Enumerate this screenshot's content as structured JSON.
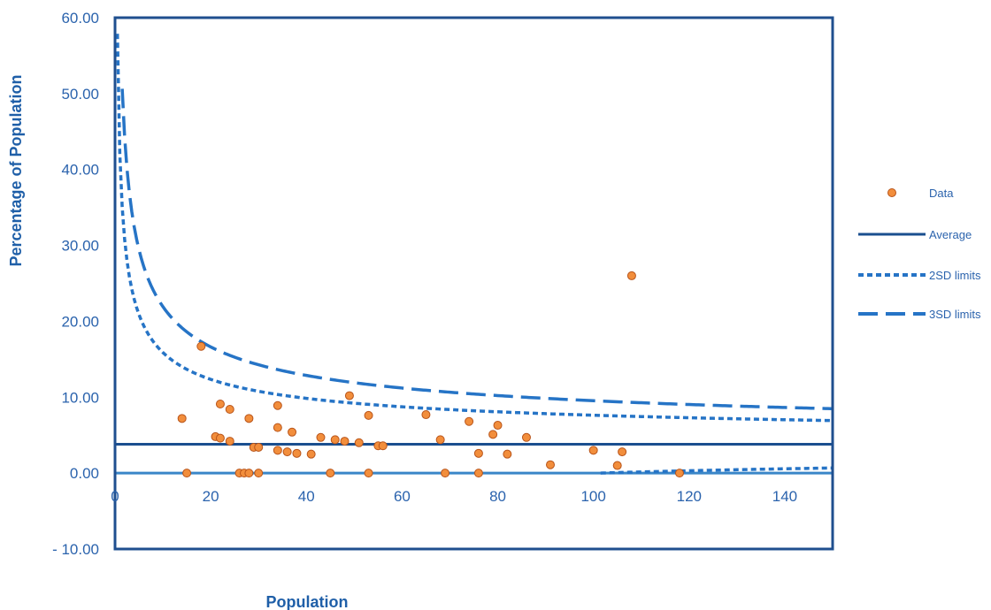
{
  "chart_data": {
    "type": "scatter",
    "title": "",
    "xlabel": "Population",
    "ylabel": "Percentage of Population",
    "xlim": [
      0,
      150
    ],
    "ylim": [
      -10,
      60
    ],
    "x_ticks": [
      0,
      20,
      40,
      60,
      80,
      100,
      120,
      140
    ],
    "y_ticks": [
      -10,
      0,
      10,
      20,
      30,
      40,
      50,
      60
    ],
    "x_tick_labels": [
      "0",
      "20",
      "40",
      "60",
      "80",
      "100",
      "120",
      "140"
    ],
    "y_tick_labels": [
      "- 10.00",
      "0.00",
      "10.00",
      "20.00",
      "30.00",
      "40.00",
      "50.00",
      "60.00"
    ],
    "grid": false,
    "legend_position": "right",
    "legend": [
      "Data",
      "Average",
      "2SD limits",
      "3SD limits"
    ],
    "average": 3.8,
    "colors": {
      "data_fill": "#f28e3c",
      "data_stroke": "#b8541a",
      "average": "#1a4f8f",
      "limits": "#2674c6",
      "frame": "#1f4f8f",
      "zero_line": "#3a86c8",
      "text": "#2b63ad"
    },
    "series": [
      {
        "name": "Data",
        "points": [
          [
            14,
            7.2
          ],
          [
            15,
            0
          ],
          [
            18,
            16.7
          ],
          [
            21,
            4.8
          ],
          [
            22,
            9.1
          ],
          [
            22,
            4.6
          ],
          [
            24,
            8.4
          ],
          [
            24,
            4.2
          ],
          [
            26,
            0
          ],
          [
            27,
            0
          ],
          [
            28,
            7.2
          ],
          [
            28,
            0
          ],
          [
            29,
            3.4
          ],
          [
            30,
            3.4
          ],
          [
            30,
            0
          ],
          [
            34,
            8.9
          ],
          [
            34,
            6.0
          ],
          [
            34,
            3.0
          ],
          [
            36,
            2.8
          ],
          [
            37,
            5.4
          ],
          [
            38,
            2.6
          ],
          [
            41,
            2.5
          ],
          [
            43,
            4.7
          ],
          [
            45,
            0
          ],
          [
            46,
            4.4
          ],
          [
            48,
            4.2
          ],
          [
            49,
            10.2
          ],
          [
            51,
            4.0
          ],
          [
            53,
            7.6
          ],
          [
            53,
            0
          ],
          [
            55,
            3.6
          ],
          [
            56,
            3.6
          ],
          [
            65,
            7.7
          ],
          [
            68,
            4.4
          ],
          [
            69,
            0
          ],
          [
            74,
            6.8
          ],
          [
            76,
            2.6
          ],
          [
            76,
            0
          ],
          [
            79,
            5.1
          ],
          [
            80,
            6.3
          ],
          [
            82,
            2.5
          ],
          [
            86,
            4.7
          ],
          [
            91,
            1.1
          ],
          [
            100,
            3.0
          ],
          [
            105,
            1.0
          ],
          [
            106,
            2.8
          ],
          [
            108,
            26.0
          ],
          [
            118,
            0
          ]
        ]
      },
      {
        "name": "Average"
      },
      {
        "name": "2SD limits",
        "sd": 2
      },
      {
        "name": "3SD limits",
        "sd": 3
      }
    ]
  }
}
